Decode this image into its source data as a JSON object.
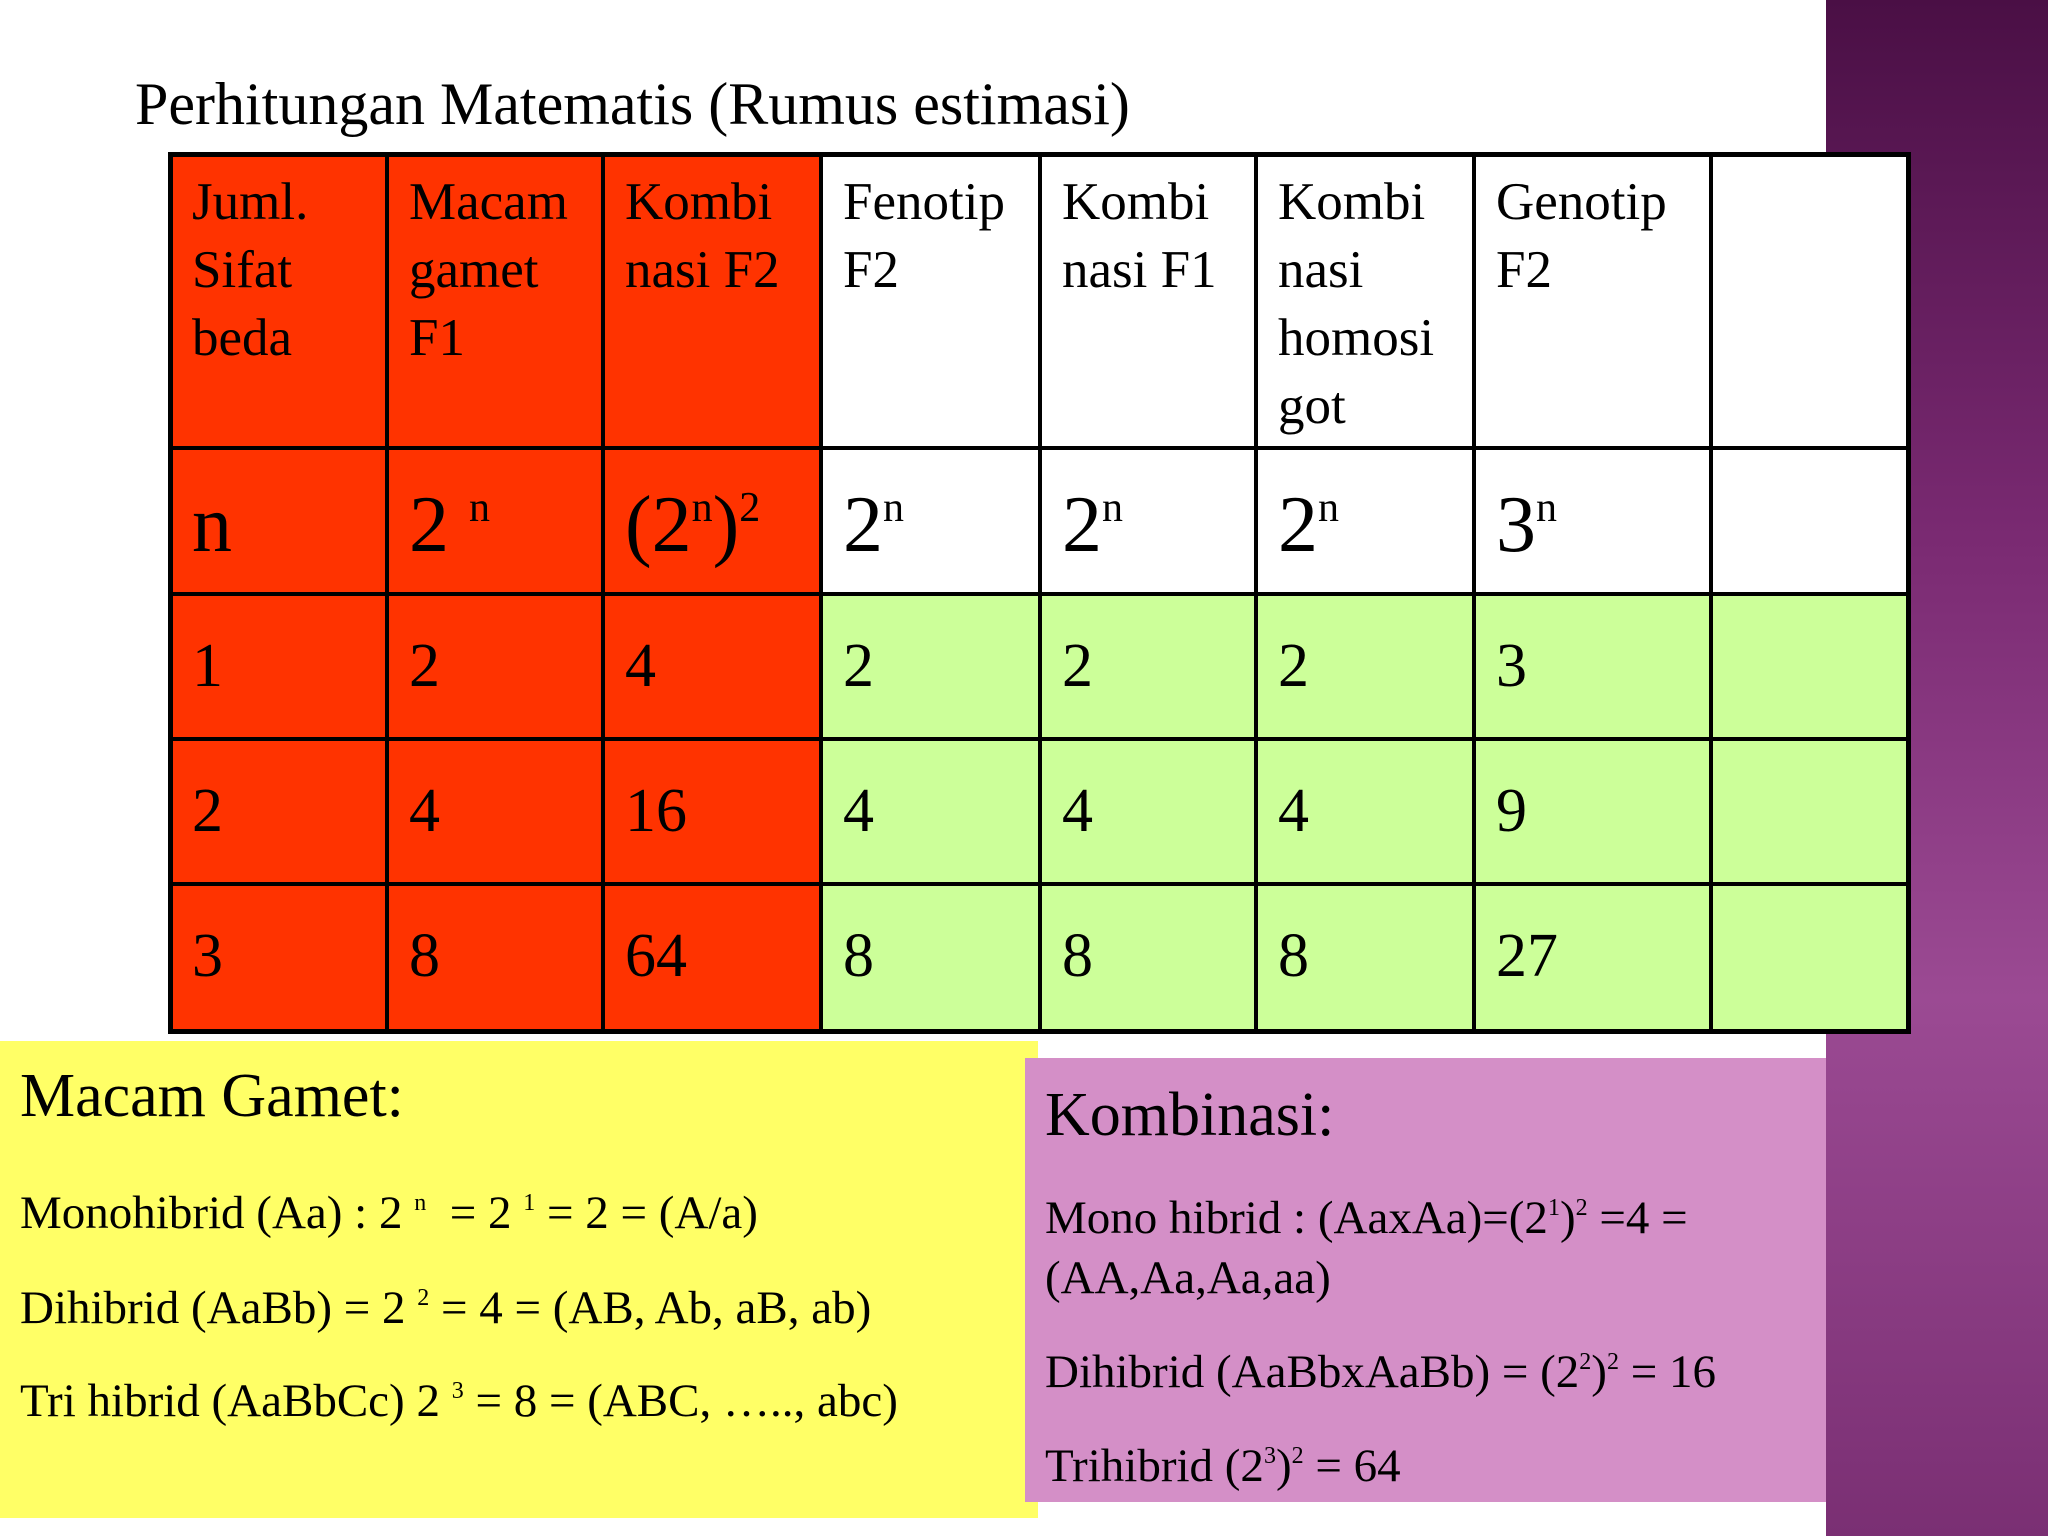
{
  "title": "Perhitungan Matematis (Rumus estimasi)",
  "table": {
    "header": [
      "Juml.\nSifat\nbeda",
      "Macam\ngamet\nF1",
      "Kombi\nnasi F2",
      "Fenotip\nF2",
      "Kombi\nnasi F1",
      "Kombi\nnasi\nhomosi\ngot",
      "Genotip\nF2"
    ],
    "formulas": [
      [
        {
          "text": "n"
        }
      ],
      [
        {
          "text": "2 "
        },
        {
          "text": "n",
          "sup": true
        }
      ],
      [
        {
          "text": "(2"
        },
        {
          "text": "n",
          "sup": true
        },
        {
          "text": ")"
        },
        {
          "text": "2",
          "sup": true
        }
      ],
      [
        {
          "text": "2"
        },
        {
          "text": "n",
          "sup": true
        }
      ],
      [
        {
          "text": "2"
        },
        {
          "text": "n",
          "sup": true
        }
      ],
      [
        {
          "text": "2"
        },
        {
          "text": "n",
          "sup": true
        }
      ],
      [
        {
          "text": "3"
        },
        {
          "text": "n",
          "sup": true
        }
      ]
    ],
    "rows": [
      [
        "1",
        "2",
        "4",
        "2",
        "2",
        "2",
        "3"
      ],
      [
        "2",
        "4",
        "16",
        "4",
        "4",
        "4",
        "9"
      ],
      [
        "3",
        "8",
        "64",
        "8",
        "8",
        "8",
        "27"
      ]
    ]
  },
  "macam_gamet": {
    "heading": "Macam Gamet:",
    "lines": [
      [
        {
          "text": "Monohibrid (Aa) : 2 "
        },
        {
          "text": "n",
          "sup": true
        },
        {
          "text": "  = 2 "
        },
        {
          "text": "1",
          "sup": true
        },
        {
          "text": " = 2 = (A/a)"
        }
      ],
      [
        {
          "text": "Dihibrid (AaBb) = 2 "
        },
        {
          "text": "2",
          "sup": true
        },
        {
          "text": " = 4 = (AB, Ab, aB, ab)"
        }
      ],
      [
        {
          "text": "Tri hibrid (AaBbCc) 2 "
        },
        {
          "text": "3",
          "sup": true
        },
        {
          "text": " = 8 = (ABC, ….., abc)"
        }
      ]
    ]
  },
  "kombinasi": {
    "heading": "Kombinasi:",
    "lines": [
      [
        {
          "text": "Mono hibrid : (AaxAa)=(2"
        },
        {
          "text": "1",
          "sup": true
        },
        {
          "text": ")"
        },
        {
          "text": "2",
          "sup": true
        },
        {
          "text": " =4 = (AA,Aa,Aa,aa)"
        }
      ],
      [
        {
          "text": "Dihibrid (AaBbxAaBb) = (2"
        },
        {
          "text": "2",
          "sup": true
        },
        {
          "text": ")"
        },
        {
          "text": "2",
          "sup": true
        },
        {
          "text": " = 16"
        }
      ],
      [
        {
          "text": "Trihibrid (2"
        },
        {
          "text": "3",
          "sup": true
        },
        {
          "text": ")"
        },
        {
          "text": "2",
          "sup": true
        },
        {
          "text": " = 64"
        }
      ]
    ]
  }
}
